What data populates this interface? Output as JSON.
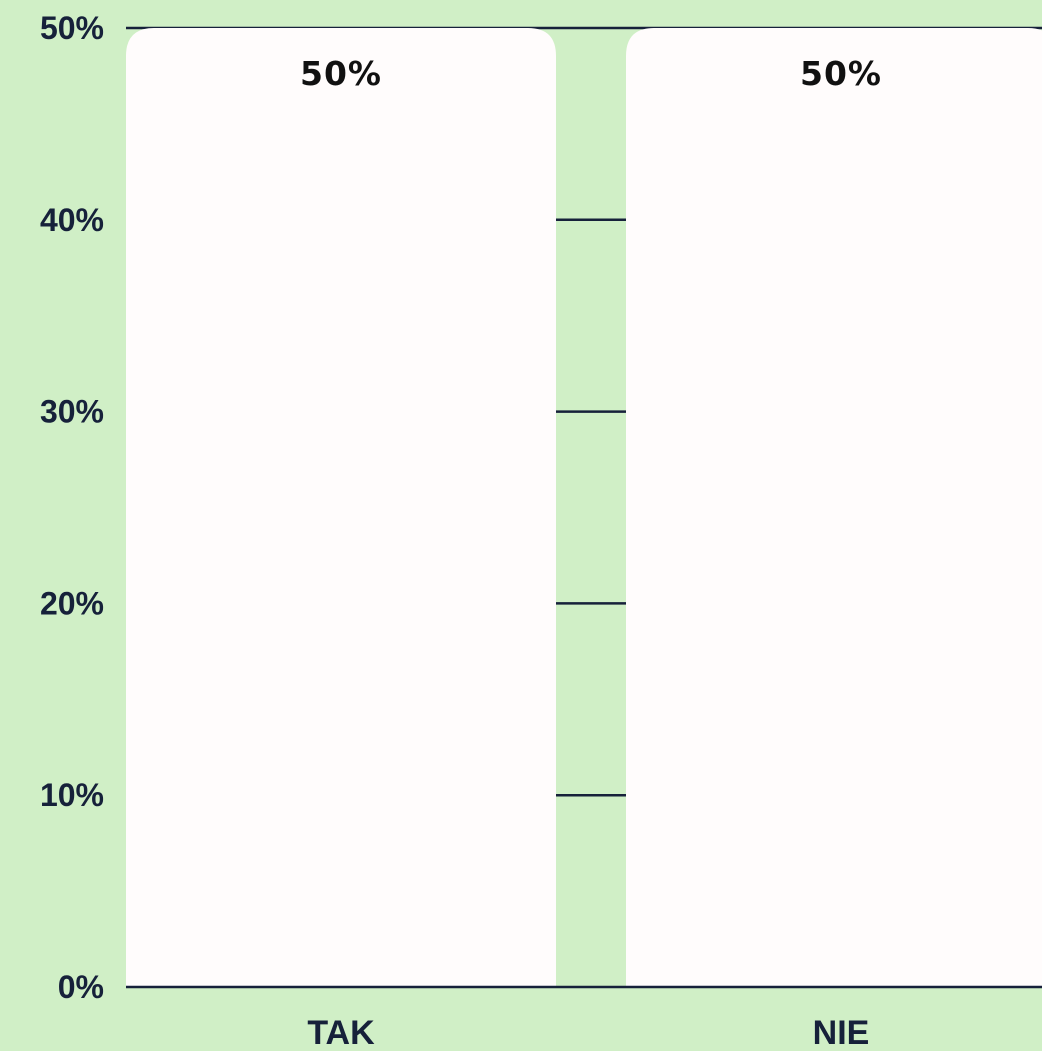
{
  "colors": {
    "background": "#d0efc6",
    "bar": "#fffcfc",
    "grid": "#16213a",
    "text": "#16213a"
  },
  "chart_data": {
    "type": "bar",
    "title": "",
    "xlabel": "",
    "ylabel": "",
    "categories": [
      "TAK",
      "NIE"
    ],
    "values": [
      50,
      50
    ],
    "value_labels": [
      "50%",
      "50%"
    ],
    "ylim": [
      0,
      50
    ],
    "yticks": [
      0,
      10,
      20,
      30,
      40,
      50
    ],
    "ytick_labels": [
      "0%",
      "10%",
      "20%",
      "30%",
      "40%",
      "50%"
    ],
    "grid": true,
    "legend": "none"
  }
}
